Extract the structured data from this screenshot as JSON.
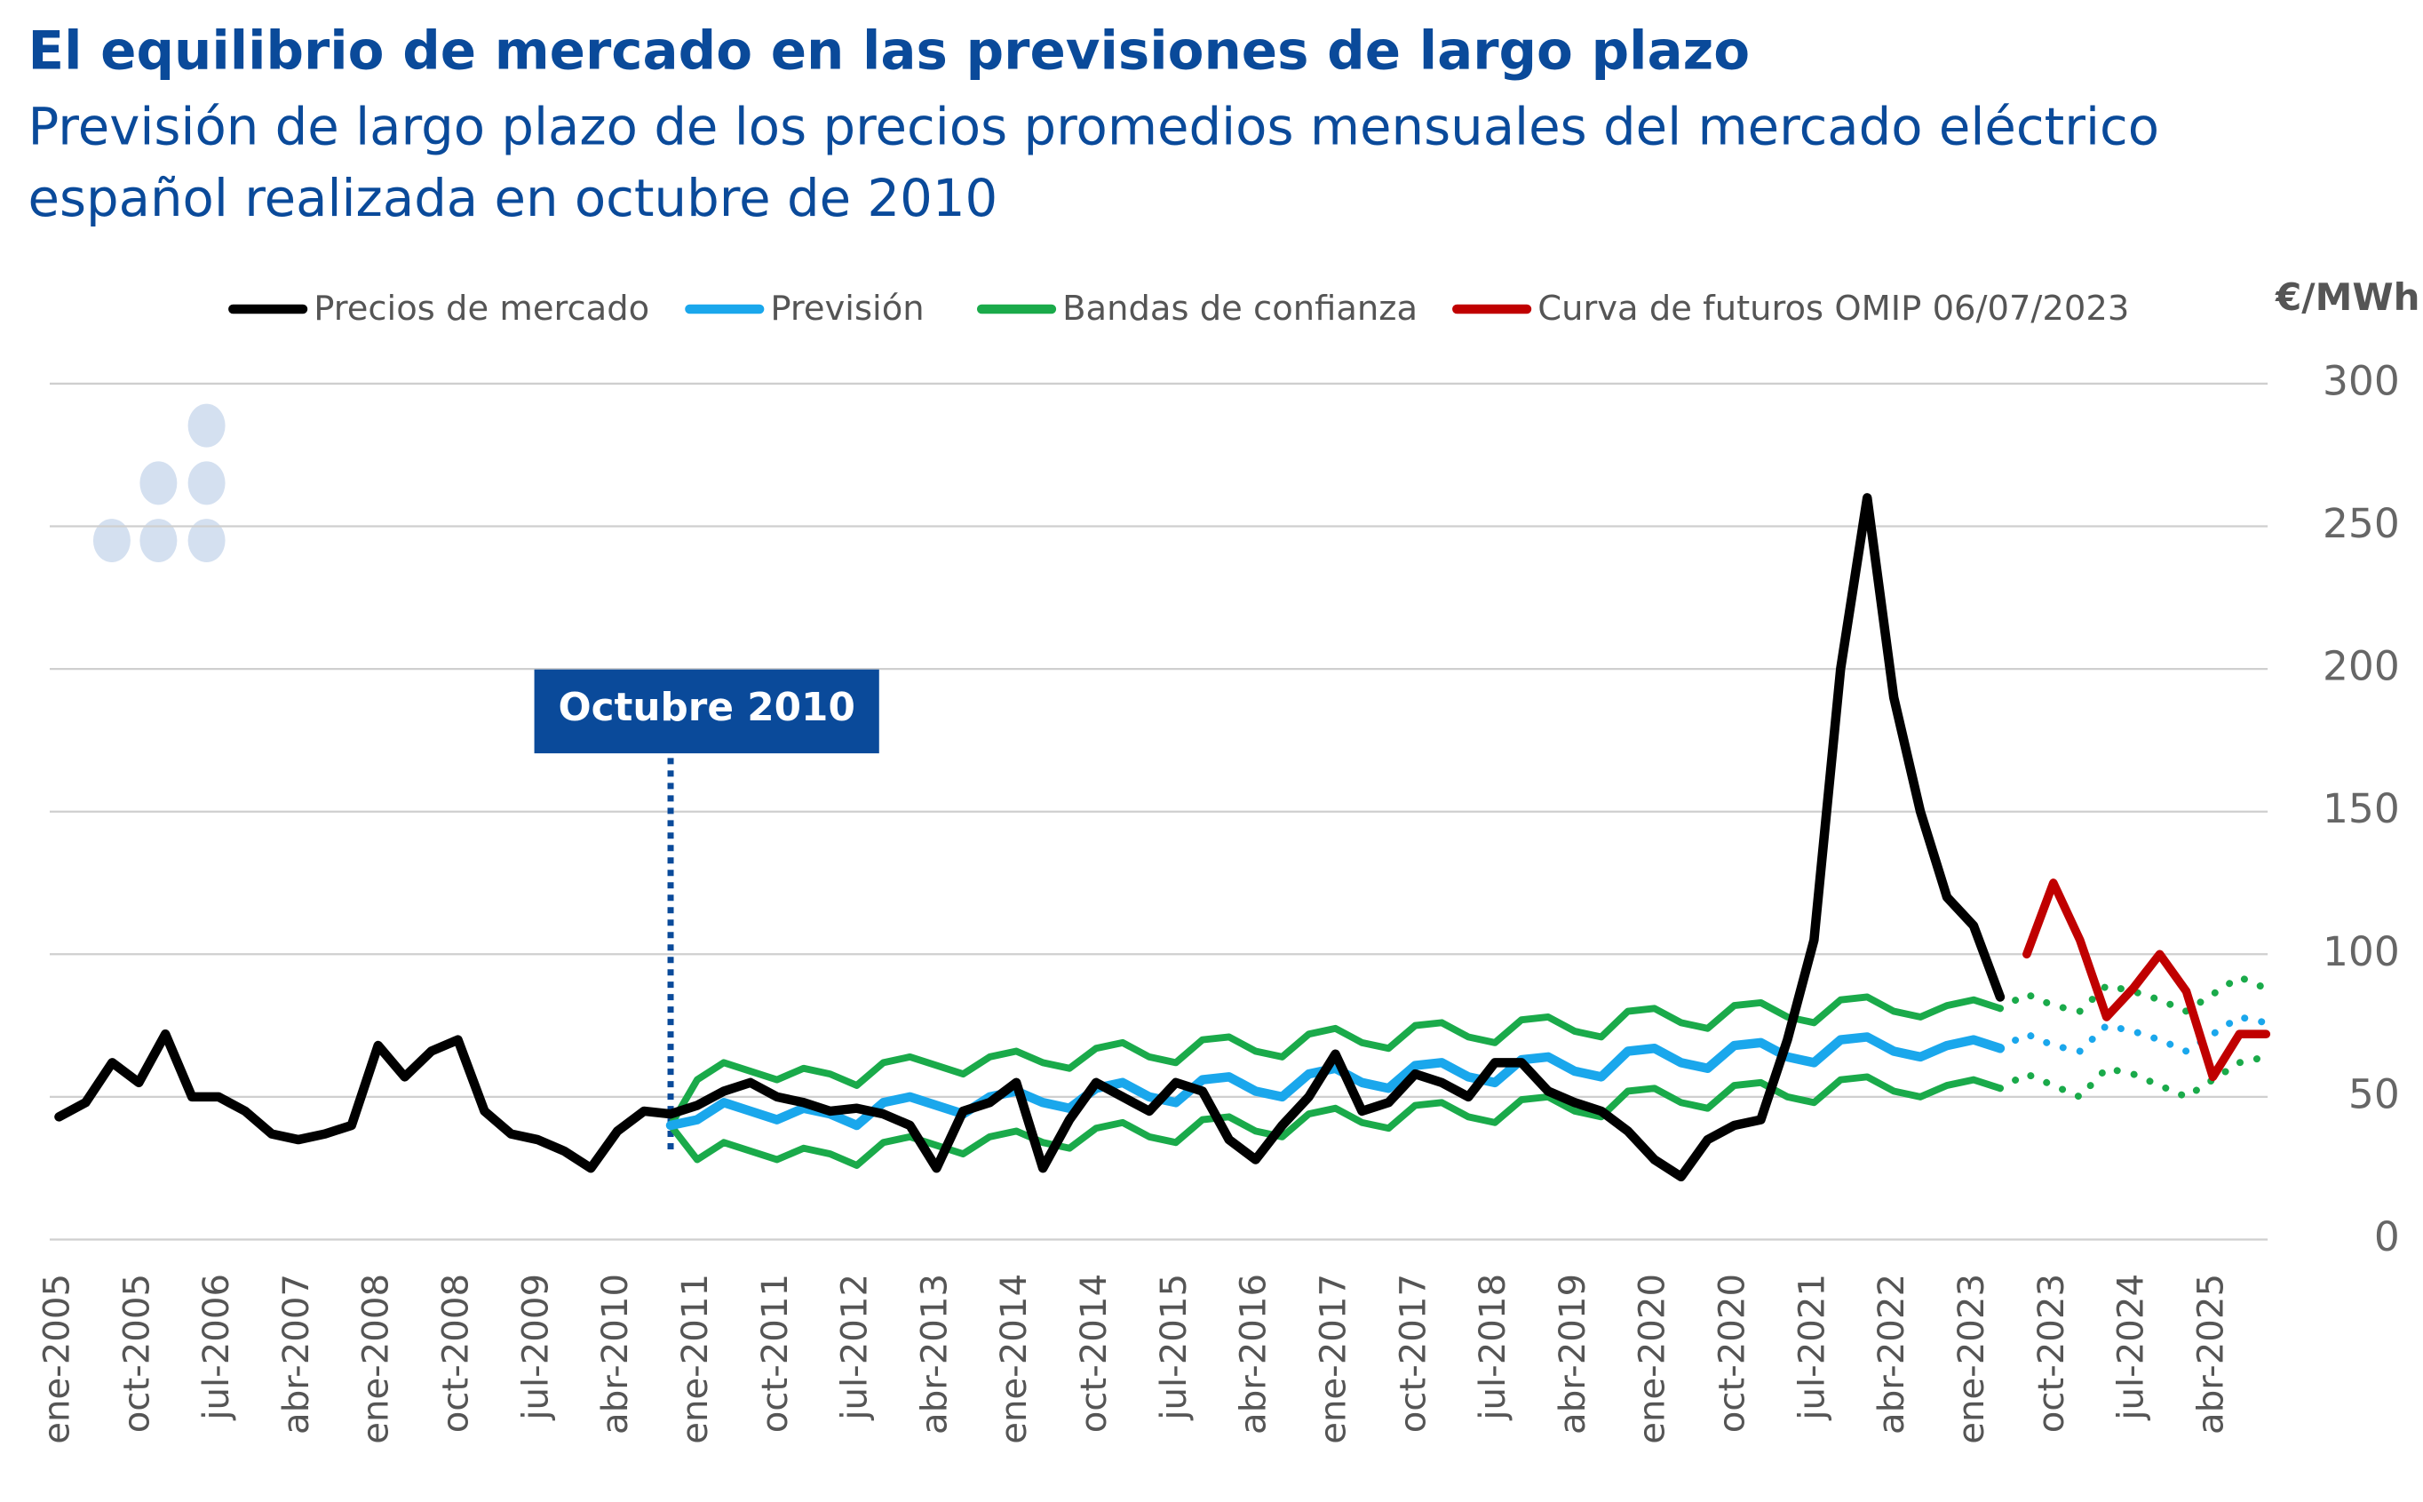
{
  "chart_data": {
    "type": "line",
    "title": "El equilibrio de mercado en las previsiones de largo plazo",
    "subtitle": [
      "Previsión de largo plazo de los precios promedios mensuales del mercado eléctrico",
      "español realizada en octubre de 2010"
    ],
    "y_label": "€/MWh",
    "annotation": "Octubre 2010",
    "ylim": [
      0,
      300
    ],
    "yticks": [
      0,
      50,
      100,
      150,
      200,
      250,
      300
    ],
    "grid": true,
    "legend": "top",
    "categories": [
      "ene-2005",
      null,
      null,
      "oct-2005",
      null,
      null,
      "jul-2006",
      null,
      null,
      "abr-2007",
      null,
      null,
      "ene-2008",
      null,
      null,
      "oct-2008",
      null,
      null,
      "jul-2009",
      null,
      null,
      "abr-2010",
      null,
      null,
      "ene-2011",
      null,
      null,
      "oct-2011",
      null,
      null,
      "jul-2012",
      null,
      null,
      "abr-2013",
      null,
      null,
      "ene-2014",
      null,
      null,
      "oct-2014",
      null,
      null,
      "jul-2015",
      null,
      null,
      "abr-2016",
      null,
      null,
      "ene-2017",
      null,
      null,
      "oct-2017",
      null,
      null,
      "jul-2018",
      null,
      null,
      "abr-2019",
      null,
      null,
      "ene-2020",
      null,
      null,
      "oct-2020",
      null,
      null,
      "jul-2021",
      null,
      null,
      "abr-2022",
      null,
      null,
      "ene-2023",
      null,
      null,
      "oct-2023",
      null,
      null,
      "jul-2024",
      null,
      null,
      "abr-2025",
      null,
      null
    ],
    "series": [
      {
        "name": "Precios de mercado",
        "color": "#000000",
        "style": "solid",
        "values": [
          43,
          48,
          62,
          55,
          72,
          50,
          50,
          45,
          37,
          35,
          37,
          40,
          68,
          57,
          66,
          70,
          45,
          37,
          35,
          31,
          25,
          38,
          45,
          44,
          47,
          52,
          55,
          50,
          48,
          45,
          46,
          44,
          40,
          25,
          45,
          48,
          55,
          25,
          42,
          55,
          50,
          45,
          55,
          52,
          35,
          28,
          40,
          50,
          65,
          45,
          48,
          58,
          55,
          50,
          62,
          62,
          52,
          48,
          45,
          38,
          28,
          22,
          35,
          40,
          42,
          70,
          105,
          200,
          260,
          190,
          150,
          120,
          110,
          85,
          null,
          null,
          null,
          null,
          null,
          null,
          null,
          null,
          null,
          null
        ]
      },
      {
        "name": "Previsión",
        "color": "#1aa7ec",
        "style": "solid",
        "values": [
          null,
          null,
          null,
          null,
          null,
          null,
          null,
          null,
          null,
          null,
          null,
          null,
          null,
          null,
          null,
          null,
          null,
          null,
          null,
          null,
          null,
          null,
          null,
          40,
          42,
          48,
          45,
          42,
          46,
          44,
          40,
          48,
          50,
          47,
          44,
          50,
          52,
          48,
          46,
          53,
          55,
          50,
          48,
          56,
          57,
          52,
          50,
          58,
          60,
          55,
          53,
          61,
          62,
          57,
          55,
          63,
          64,
          59,
          57,
          66,
          67,
          62,
          60,
          68,
          69,
          64,
          62,
          70,
          71,
          66,
          64,
          68,
          70,
          67,
          null,
          null,
          null,
          null,
          null,
          null,
          null,
          null,
          null,
          null
        ]
      },
      {
        "name": "Bandas de confianza",
        "color": "#1aaa4a",
        "style": "solid",
        "values": [
          null,
          null,
          null,
          null,
          null,
          null,
          null,
          null,
          null,
          null,
          null,
          null,
          null,
          null,
          null,
          null,
          null,
          null,
          null,
          null,
          null,
          null,
          null,
          40,
          56,
          62,
          59,
          56,
          60,
          58,
          54,
          62,
          64,
          61,
          58,
          64,
          66,
          62,
          60,
          67,
          69,
          64,
          62,
          70,
          71,
          66,
          64,
          72,
          74,
          69,
          67,
          75,
          76,
          71,
          69,
          77,
          78,
          73,
          71,
          80,
          81,
          76,
          74,
          82,
          83,
          78,
          76,
          84,
          85,
          80,
          78,
          82,
          84,
          81,
          null,
          null,
          null,
          null,
          null,
          null,
          null,
          null,
          null,
          null
        ]
      },
      {
        "color": "#1aaa4a",
        "style": "solid",
        "values": [
          null,
          null,
          null,
          null,
          null,
          null,
          null,
          null,
          null,
          null,
          null,
          null,
          null,
          null,
          null,
          null,
          null,
          null,
          null,
          null,
          null,
          null,
          null,
          40,
          28,
          34,
          31,
          28,
          32,
          30,
          26,
          34,
          36,
          33,
          30,
          36,
          38,
          34,
          32,
          39,
          41,
          36,
          34,
          42,
          43,
          38,
          36,
          44,
          46,
          41,
          39,
          47,
          48,
          43,
          41,
          49,
          50,
          45,
          43,
          52,
          53,
          48,
          46,
          54,
          55,
          50,
          48,
          56,
          57,
          52,
          50,
          54,
          56,
          53,
          null,
          null,
          null,
          null,
          null,
          null,
          null,
          null,
          null,
          null
        ]
      },
      {
        "color": "#1aa7ec",
        "style": "dotted",
        "values": [
          null,
          null,
          null,
          null,
          null,
          null,
          null,
          null,
          null,
          null,
          null,
          null,
          null,
          null,
          null,
          null,
          null,
          null,
          null,
          null,
          null,
          null,
          null,
          null,
          null,
          null,
          null,
          null,
          null,
          null,
          null,
          null,
          null,
          null,
          null,
          null,
          null,
          null,
          null,
          null,
          null,
          null,
          null,
          null,
          null,
          null,
          null,
          null,
          null,
          null,
          null,
          null,
          null,
          null,
          null,
          null,
          null,
          null,
          null,
          null,
          null,
          null,
          null,
          null,
          null,
          null,
          null,
          null,
          null,
          null,
          null,
          null,
          null,
          67,
          72,
          68,
          66,
          75,
          73,
          70,
          66,
          72,
          78,
          76
        ]
      },
      {
        "color": "#1aaa4a",
        "style": "dotted",
        "values": [
          null,
          null,
          null,
          null,
          null,
          null,
          null,
          null,
          null,
          null,
          null,
          null,
          null,
          null,
          null,
          null,
          null,
          null,
          null,
          null,
          null,
          null,
          null,
          null,
          null,
          null,
          null,
          null,
          null,
          null,
          null,
          null,
          null,
          null,
          null,
          null,
          null,
          null,
          null,
          null,
          null,
          null,
          null,
          null,
          null,
          null,
          null,
          null,
          null,
          null,
          null,
          null,
          null,
          null,
          null,
          null,
          null,
          null,
          null,
          null,
          null,
          null,
          null,
          null,
          null,
          null,
          null,
          null,
          null,
          null,
          null,
          null,
          null,
          81,
          86,
          82,
          80,
          89,
          87,
          84,
          80,
          86,
          92,
          88
        ]
      },
      {
        "color": "#1aaa4a",
        "style": "dotted",
        "values": [
          null,
          null,
          null,
          null,
          null,
          null,
          null,
          null,
          null,
          null,
          null,
          null,
          null,
          null,
          null,
          null,
          null,
          null,
          null,
          null,
          null,
          null,
          null,
          null,
          null,
          null,
          null,
          null,
          null,
          null,
          null,
          null,
          null,
          null,
          null,
          null,
          null,
          null,
          null,
          null,
          null,
          null,
          null,
          null,
          null,
          null,
          null,
          null,
          null,
          null,
          null,
          null,
          null,
          null,
          null,
          null,
          null,
          null,
          null,
          null,
          null,
          null,
          null,
          null,
          null,
          null,
          null,
          null,
          null,
          null,
          null,
          null,
          null,
          53,
          58,
          54,
          50,
          60,
          58,
          54,
          50,
          56,
          62,
          64
        ]
      },
      {
        "name": "Curva de futuros OMIP 06/07/2023",
        "color": "#c00000",
        "style": "solid",
        "values": [
          null,
          null,
          null,
          null,
          null,
          null,
          null,
          null,
          null,
          null,
          null,
          null,
          null,
          null,
          null,
          null,
          null,
          null,
          null,
          null,
          null,
          null,
          null,
          null,
          null,
          null,
          null,
          null,
          null,
          null,
          null,
          null,
          null,
          null,
          null,
          null,
          null,
          null,
          null,
          null,
          null,
          null,
          null,
          null,
          null,
          null,
          null,
          null,
          null,
          null,
          null,
          null,
          null,
          null,
          null,
          null,
          null,
          null,
          null,
          null,
          null,
          null,
          null,
          null,
          null,
          null,
          null,
          null,
          null,
          null,
          null,
          null,
          null,
          null,
          100,
          125,
          105,
          78,
          88,
          100,
          87,
          57,
          72,
          72
        ]
      }
    ]
  }
}
